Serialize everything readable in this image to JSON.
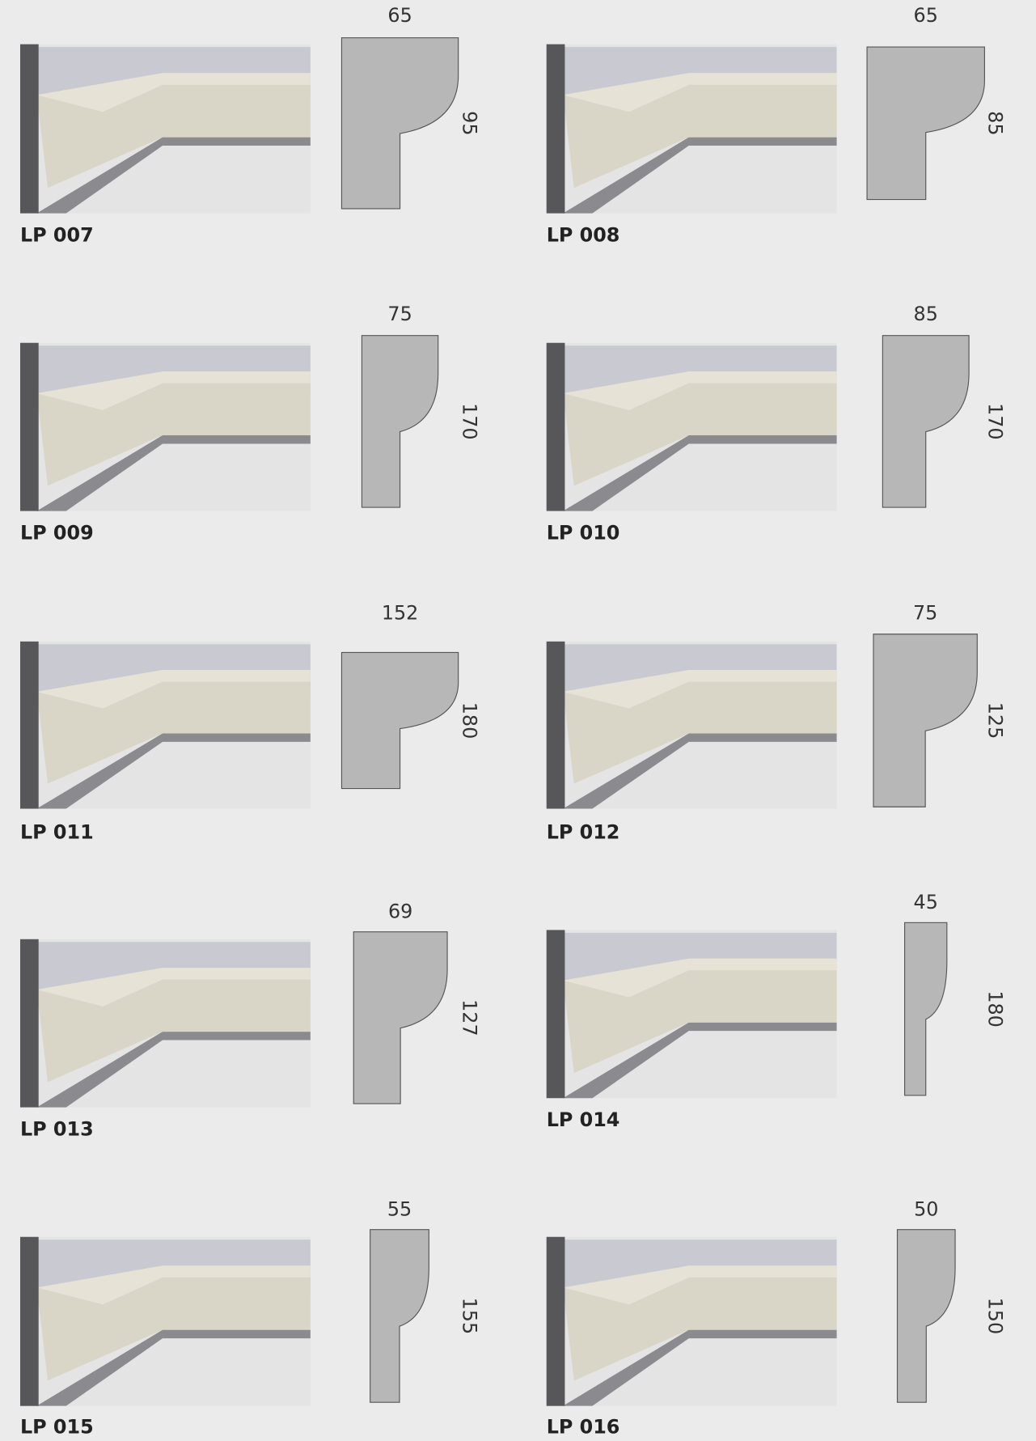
{
  "catalog": {
    "items": [
      {
        "code": "LP 007",
        "width": "65",
        "height": "95"
      },
      {
        "code": "LP 008",
        "width": "65",
        "height": "85"
      },
      {
        "code": "LP 009",
        "width": "75",
        "height": "170"
      },
      {
        "code": "LP 010",
        "width": "85",
        "height": "170"
      },
      {
        "code": "LP 011",
        "width": "152",
        "height": "180"
      },
      {
        "code": "LP 012",
        "width": "75",
        "height": "125"
      },
      {
        "code": "LP 013",
        "width": "69",
        "height": "127"
      },
      {
        "code": "LP 014",
        "width": "45",
        "height": "180"
      },
      {
        "code": "LP 015",
        "width": "55",
        "height": "155"
      },
      {
        "code": "LP 016",
        "width": "50",
        "height": "150"
      }
    ]
  }
}
